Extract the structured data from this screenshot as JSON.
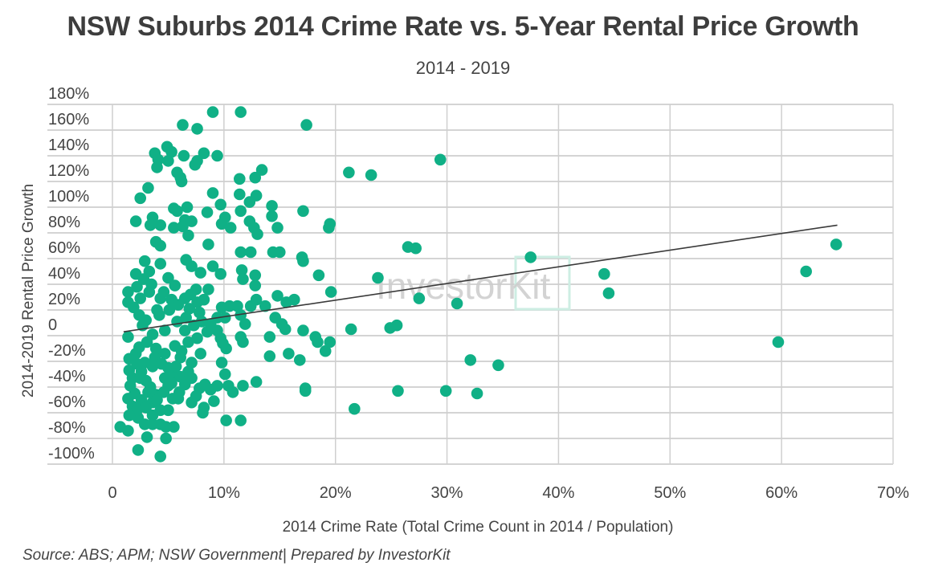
{
  "title": "NSW Suburbs 2014 Crime Rate vs. 5-Year Rental Price Growth",
  "subtitle": "2014 - 2019",
  "source": "Source: ABS; APM; NSW Government| Prepared by InvestorKit",
  "watermark": "InvestorKit",
  "colors": {
    "points": "#10b086",
    "trendline": "#3a3a3a",
    "grid": "#d4d4d4",
    "watermark_text": "#c8c8c8",
    "watermark_box": "#cdeee3"
  },
  "chart_data": {
    "type": "scatter",
    "title": "NSW Suburbs 2014 Crime Rate vs. 5-Year Rental Price Growth",
    "xlabel": "2014 Crime Rate (Total Crime Count in 2014 / Population)",
    "ylabel": "2014-2019 Rental Price Growth",
    "xlim": [
      0,
      70
    ],
    "ylim": [
      -100,
      180
    ],
    "x_ticks": [
      "0",
      "10%",
      "20%",
      "30%",
      "40%",
      "50%",
      "60%",
      "70%"
    ],
    "x_tick_values": [
      0,
      10,
      20,
      30,
      40,
      50,
      60,
      70
    ],
    "y_ticks": [
      "180%",
      "160%",
      "140%",
      "120%",
      "100%",
      "80%",
      "60%",
      "40%",
      "20%",
      "0",
      "-20%",
      "-40%",
      "-60%",
      "-80%",
      "-100%"
    ],
    "y_tick_values": [
      180,
      160,
      140,
      120,
      100,
      80,
      60,
      40,
      20,
      0,
      -20,
      -40,
      -60,
      -80,
      -100
    ],
    "grid": true,
    "legend": "none",
    "trendline": {
      "x": [
        1.0,
        65.0
      ],
      "y": [
        3,
        86
      ]
    },
    "points": [
      [
        9.0,
        174
      ],
      [
        11.5,
        174
      ],
      [
        6.3,
        164
      ],
      [
        7.6,
        161
      ],
      [
        17.4,
        164
      ],
      [
        3.8,
        142
      ],
      [
        4.9,
        147
      ],
      [
        5.3,
        143
      ],
      [
        4.1,
        137
      ],
      [
        5.0,
        136
      ],
      [
        6.4,
        140
      ],
      [
        8.2,
        142
      ],
      [
        9.4,
        140
      ],
      [
        7.6,
        136
      ],
      [
        7.4,
        133
      ],
      [
        4.0,
        131
      ],
      [
        5.8,
        127
      ],
      [
        6.2,
        120
      ],
      [
        6.1,
        123
      ],
      [
        11.4,
        122
      ],
      [
        12.8,
        123
      ],
      [
        13.4,
        129
      ],
      [
        3.2,
        115
      ],
      [
        2.5,
        107
      ],
      [
        9.0,
        111
      ],
      [
        11.4,
        110
      ],
      [
        12.9,
        109
      ],
      [
        12.3,
        104
      ],
      [
        5.5,
        99
      ],
      [
        5.8,
        97
      ],
      [
        6.7,
        100
      ],
      [
        9.7,
        102
      ],
      [
        2.1,
        89
      ],
      [
        3.6,
        92
      ],
      [
        3.4,
        86
      ],
      [
        4.3,
        86
      ],
      [
        5.5,
        84
      ],
      [
        6.5,
        90
      ],
      [
        6.3,
        85
      ],
      [
        7.1,
        89
      ],
      [
        8.5,
        96
      ],
      [
        9.8,
        87
      ],
      [
        10.1,
        92
      ],
      [
        10.6,
        84
      ],
      [
        11.5,
        97
      ],
      [
        12.3,
        89
      ],
      [
        12.7,
        84
      ],
      [
        13.0,
        79
      ],
      [
        14.3,
        93
      ],
      [
        14.3,
        101
      ],
      [
        14.8,
        84
      ],
      [
        19.4,
        84
      ],
      [
        17.1,
        97
      ],
      [
        3.9,
        73
      ],
      [
        4.3,
        70
      ],
      [
        6.8,
        78
      ],
      [
        8.6,
        71
      ],
      [
        11.5,
        65
      ],
      [
        12.4,
        65
      ],
      [
        14.4,
        65
      ],
      [
        15.0,
        65
      ],
      [
        17.1,
        58
      ],
      [
        17.0,
        61
      ],
      [
        6.6,
        59
      ],
      [
        2.1,
        48
      ],
      [
        2.9,
        58
      ],
      [
        3.3,
        50
      ],
      [
        4.3,
        56
      ],
      [
        5.0,
        45
      ],
      [
        5.6,
        39
      ],
      [
        7.1,
        54
      ],
      [
        7.9,
        49
      ],
      [
        9.0,
        54
      ],
      [
        9.7,
        48
      ],
      [
        11.6,
        51
      ],
      [
        11.7,
        44
      ],
      [
        12.8,
        47
      ],
      [
        12.8,
        39
      ],
      [
        18.5,
        47
      ],
      [
        8.6,
        36
      ],
      [
        7.5,
        36
      ],
      [
        6.5,
        29
      ],
      [
        1.4,
        34
      ],
      [
        1.4,
        26
      ],
      [
        2.5,
        29
      ],
      [
        3.3,
        34
      ],
      [
        4.3,
        29
      ],
      [
        5.3,
        28
      ],
      [
        9.8,
        22
      ],
      [
        10.5,
        23
      ],
      [
        11.2,
        23
      ],
      [
        12.4,
        23
      ],
      [
        13.7,
        23
      ],
      [
        14.8,
        31
      ],
      [
        15.6,
        26
      ],
      [
        16.3,
        28
      ],
      [
        12.9,
        28
      ],
      [
        19.6,
        34
      ],
      [
        11.5,
        16
      ],
      [
        10.1,
        14
      ],
      [
        9.4,
        14
      ],
      [
        7.8,
        18
      ],
      [
        6.9,
        21
      ],
      [
        14.6,
        14
      ],
      [
        15.2,
        9
      ],
      [
        15.5,
        5
      ],
      [
        17.1,
        4
      ],
      [
        18.2,
        -1
      ],
      [
        18.4,
        -5
      ],
      [
        19.1,
        -12
      ],
      [
        1.4,
        -1
      ],
      [
        2.7,
        8
      ],
      [
        3.6,
        1
      ],
      [
        4.7,
        4
      ],
      [
        5.8,
        11
      ],
      [
        6.5,
        4
      ],
      [
        7.6,
        -2
      ],
      [
        8.5,
        3
      ],
      [
        9.4,
        4
      ],
      [
        9.7,
        -2
      ],
      [
        11.5,
        -1
      ],
      [
        11.9,
        9
      ],
      [
        11.7,
        -5
      ],
      [
        10.2,
        -10
      ],
      [
        14.1,
        -1
      ],
      [
        14.1,
        -16
      ],
      [
        15.8,
        -14
      ],
      [
        16.8,
        -19
      ],
      [
        2.1,
        -14
      ],
      [
        2.9,
        -21
      ],
      [
        3.8,
        -17
      ],
      [
        4.7,
        -14
      ],
      [
        6.1,
        -17
      ],
      [
        7.1,
        -21
      ],
      [
        7.9,
        -14
      ],
      [
        9.8,
        -21
      ],
      [
        10.1,
        -30
      ],
      [
        10.4,
        -39
      ],
      [
        10.8,
        -44
      ],
      [
        11.7,
        -39
      ],
      [
        12.9,
        -36
      ],
      [
        17.3,
        -41
      ],
      [
        17.3,
        -43
      ],
      [
        1.5,
        -27
      ],
      [
        1.6,
        -39
      ],
      [
        1.4,
        -49
      ],
      [
        1.8,
        -55
      ],
      [
        2.3,
        -64
      ],
      [
        2.5,
        -33
      ],
      [
        3.2,
        -44
      ],
      [
        3.6,
        -52
      ],
      [
        3.9,
        -46
      ],
      [
        4.3,
        -58
      ],
      [
        4.7,
        -33
      ],
      [
        5.0,
        -39
      ],
      [
        5.4,
        -30
      ],
      [
        6.1,
        -32
      ],
      [
        6.5,
        -38
      ],
      [
        7.1,
        -33
      ],
      [
        7.8,
        -41
      ],
      [
        8.3,
        -38
      ],
      [
        8.8,
        -42
      ],
      [
        9.4,
        -39
      ],
      [
        7.5,
        -47
      ],
      [
        7.1,
        -52
      ],
      [
        8.2,
        -56
      ],
      [
        9.1,
        -51
      ],
      [
        8.1,
        -60
      ],
      [
        5.0,
        -58
      ],
      [
        5.9,
        -49
      ],
      [
        5.4,
        -49
      ],
      [
        0.7,
        -71
      ],
      [
        1.4,
        -74
      ],
      [
        2.9,
        -69
      ],
      [
        3.6,
        -69
      ],
      [
        3.1,
        -79
      ],
      [
        2.3,
        -89
      ],
      [
        4.3,
        -69
      ],
      [
        4.8,
        -71
      ],
      [
        5.5,
        -71
      ],
      [
        4.8,
        -80
      ],
      [
        4.3,
        -94
      ],
      [
        10.2,
        -66
      ],
      [
        11.5,
        -66
      ],
      [
        3.6,
        -24
      ],
      [
        1.5,
        -18
      ],
      [
        2.2,
        -22
      ],
      [
        2.6,
        -28
      ],
      [
        3.0,
        -35
      ],
      [
        3.4,
        -40
      ],
      [
        2.0,
        -45
      ],
      [
        2.6,
        -50
      ],
      [
        3.0,
        -56
      ],
      [
        2.2,
        -58
      ],
      [
        1.8,
        -33
      ],
      [
        2.4,
        -9
      ],
      [
        3.1,
        -5
      ],
      [
        3.9,
        -10
      ],
      [
        4.4,
        -22
      ],
      [
        5.0,
        -25
      ],
      [
        5.6,
        -8
      ],
      [
        6.2,
        -12
      ],
      [
        6.8,
        -5
      ],
      [
        7.3,
        8
      ],
      [
        8.0,
        11
      ],
      [
        8.8,
        9
      ],
      [
        9.9,
        -6
      ],
      [
        4.2,
        16
      ],
      [
        5.1,
        20
      ],
      [
        5.9,
        24
      ],
      [
        6.6,
        14
      ],
      [
        7.0,
        32
      ],
      [
        7.6,
        26
      ],
      [
        8.2,
        28
      ],
      [
        2.2,
        38
      ],
      [
        2.8,
        44
      ],
      [
        3.5,
        40
      ],
      [
        4.0,
        20
      ],
      [
        4.6,
        34
      ],
      [
        3.0,
        12
      ],
      [
        1.9,
        22
      ],
      [
        2.4,
        16
      ],
      [
        1.5,
        -62
      ],
      [
        3.6,
        -62
      ],
      [
        4.0,
        -50
      ],
      [
        4.6,
        -44
      ],
      [
        5.3,
        -37
      ],
      [
        6.0,
        -44
      ],
      [
        6.8,
        -28
      ],
      [
        5.7,
        -24
      ],
      [
        21.2,
        127
      ],
      [
        23.2,
        125
      ],
      [
        29.4,
        137
      ],
      [
        19.5,
        87
      ],
      [
        26.5,
        69
      ],
      [
        27.2,
        68
      ],
      [
        37.5,
        61
      ],
      [
        23.8,
        45
      ],
      [
        44.1,
        48
      ],
      [
        44.5,
        33
      ],
      [
        62.2,
        50
      ],
      [
        64.9,
        71
      ],
      [
        27.5,
        29
      ],
      [
        30.9,
        25
      ],
      [
        21.4,
        5
      ],
      [
        24.9,
        6
      ],
      [
        25.5,
        8
      ],
      [
        19.5,
        -5
      ],
      [
        59.7,
        -5
      ],
      [
        32.1,
        -19
      ],
      [
        34.6,
        -23
      ],
      [
        25.6,
        -43
      ],
      [
        29.9,
        -43
      ],
      [
        32.7,
        -45
      ],
      [
        21.7,
        -57
      ]
    ]
  }
}
